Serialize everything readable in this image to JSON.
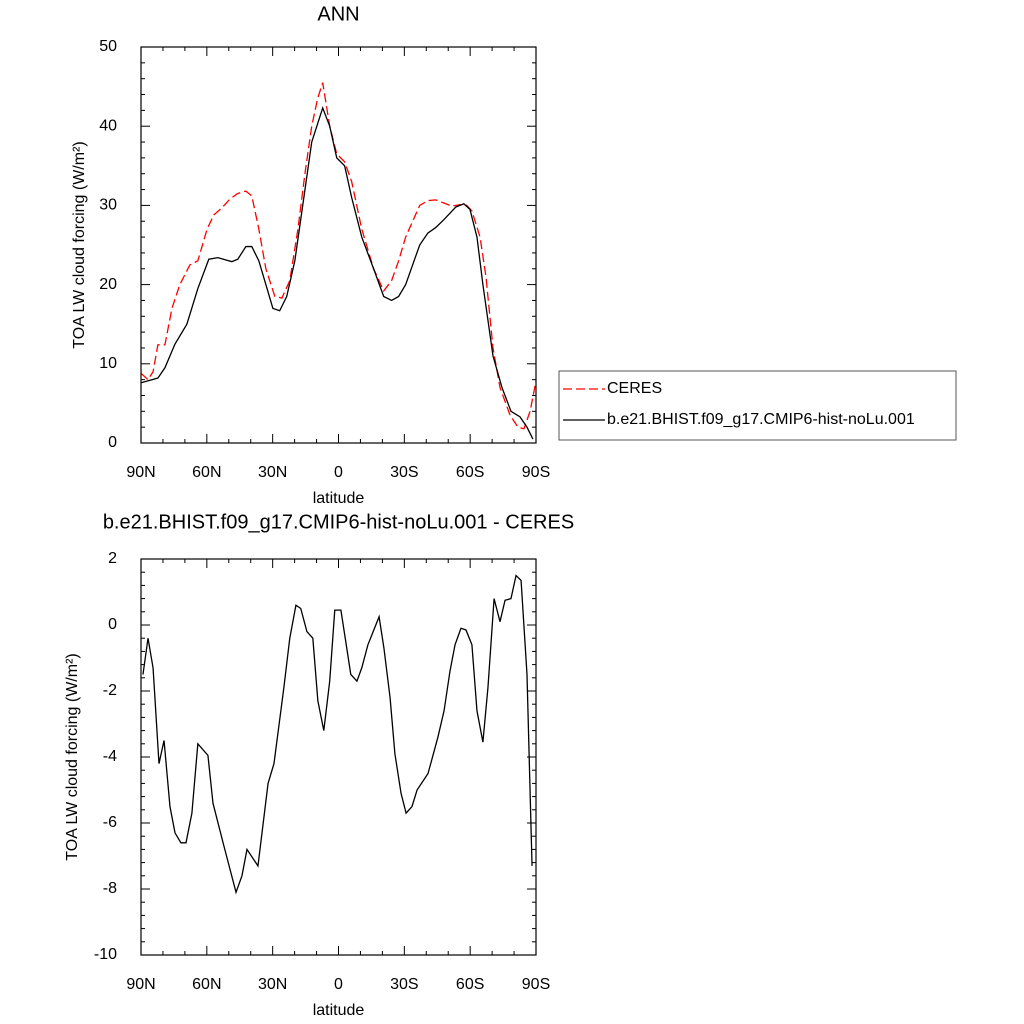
{
  "chart_data": [
    {
      "type": "line",
      "title": "ANN",
      "x_label": "latitude",
      "y_label": "TOA LW cloud forcing (W/m²)",
      "xlim": [
        90,
        -90
      ],
      "xticks": [
        {
          "value": 90,
          "label": "90N"
        },
        {
          "value": 60,
          "label": "60N"
        },
        {
          "value": 30,
          "label": "30N"
        },
        0,
        {
          "value": -30,
          "label": "30S"
        },
        {
          "value": -60,
          "label": "60S"
        },
        {
          "value": -90,
          "label": "90S"
        }
      ],
      "ylim": [
        0,
        50
      ],
      "yticks": [
        0,
        10,
        20,
        30,
        40,
        50
      ],
      "series": [
        {
          "name": "CERES",
          "color": "#ff0000",
          "dash": true,
          "x": [
            90,
            86.8,
            84.5,
            82.3,
            79.1,
            75.9,
            72.3,
            67.7,
            64.1,
            59.9,
            56.8,
            53.1,
            49.5,
            45.9,
            42.2,
            39.5,
            36.3,
            33.1,
            29,
            25.8,
            22.2,
            18.5,
            15.3,
            12.2,
            9.5,
            7.2,
            4,
            0.8,
            -2.8,
            -6,
            -10.6,
            -16,
            -20.6,
            -24.2,
            -27.4,
            -30.6,
            -33.8,
            -37,
            -40.7,
            -44.3,
            -48,
            -51.7,
            -55.4,
            -58.1,
            -60.8,
            -64.5,
            -67.2,
            -70.4,
            -73.6,
            -78.2,
            -81.8,
            -84.5,
            -87.3,
            -90
          ],
          "values": [
            8.8,
            8,
            9,
            12.4,
            12.4,
            17,
            20,
            22.5,
            23,
            27,
            28.8,
            29.7,
            30.8,
            31.5,
            31.8,
            31.2,
            27,
            22,
            18.5,
            18.3,
            20.5,
            27,
            34,
            40,
            43.5,
            45.5,
            40,
            36.5,
            35.5,
            33,
            27,
            22,
            19.2,
            20.5,
            23,
            26,
            28,
            30,
            30.6,
            30.7,
            30.3,
            29.9,
            30.1,
            30.1,
            29.3,
            26,
            21,
            12,
            7,
            3.5,
            2,
            1.8,
            4,
            7.8
          ]
        },
        {
          "name": "b.e21.BHIST.f09_g17.CMIP6-hist-noLu.001",
          "color": "#000000",
          "dash": false,
          "x": [
            90,
            82.3,
            79.1,
            74.5,
            69.1,
            64.1,
            59.1,
            55,
            48.6,
            45.9,
            42.2,
            39.5,
            36.3,
            33.1,
            29.9,
            26.8,
            23.6,
            19.9,
            16.3,
            12.2,
            7.2,
            4,
            0.8,
            -2.8,
            -6,
            -10.6,
            -16,
            -20.6,
            -24.2,
            -27.4,
            -30.6,
            -33.8,
            -37,
            -40.7,
            -44.3,
            -48,
            -53.5,
            -57.1,
            -59.9,
            -63.1,
            -65.8,
            -70.4,
            -74.5,
            -78.6,
            -82.7,
            -85.9,
            -88.6
          ],
          "values": [
            7.6,
            8.2,
            9.5,
            12.5,
            15,
            19.5,
            23.2,
            23.4,
            22.9,
            23.2,
            24.8,
            24.8,
            23,
            20,
            17,
            16.7,
            18.5,
            23,
            30,
            38,
            42.3,
            40,
            36,
            35,
            31,
            26,
            22,
            18.5,
            18,
            18.5,
            20,
            22.5,
            25,
            26.5,
            27.2,
            28.2,
            29.8,
            30.2,
            29.5,
            26,
            20,
            11,
            7,
            4,
            3.3,
            2,
            0.5
          ]
        }
      ]
    },
    {
      "type": "line",
      "title": "b.e21.BHIST.f09_g17.CMIP6-hist-noLu.001 - CERES",
      "x_label": "latitude",
      "y_label": "TOA LW cloud forcing (W/m²)",
      "xlim": [
        90,
        -90
      ],
      "xticks": [
        {
          "value": 90,
          "label": "90N"
        },
        {
          "value": 60,
          "label": "60N"
        },
        {
          "value": 30,
          "label": "30N"
        },
        0,
        {
          "value": -30,
          "label": "30S"
        },
        {
          "value": -60,
          "label": "60S"
        },
        {
          "value": -90,
          "label": "90S"
        }
      ],
      "ylim": [
        -10,
        2
      ],
      "yticks": [
        -10,
        -8,
        -6,
        -4,
        -2,
        0,
        2
      ],
      "series": [
        {
          "color": "#000000",
          "dash": false,
          "x": [
            89.1,
            86.8,
            84.5,
            81.8,
            79.5,
            76.8,
            74.5,
            71.8,
            69.5,
            66.8,
            64.1,
            59.5,
            57.2,
            52.2,
            46.7,
            44,
            41.7,
            36.7,
            32.1,
            29.4,
            24.9,
            22.2,
            19.4,
            17.2,
            14.4,
            11.7,
            9.4,
            6.7,
            4,
            1.7,
            -1.1,
            -3.3,
            -5.6,
            -8.4,
            -10.6,
            -13.4,
            -18.5,
            -20.7,
            -23.5,
            -25.7,
            -28.5,
            -30.8,
            -33.5,
            -35.8,
            -40.8,
            -45.3,
            -48.1,
            -50.8,
            -53.1,
            -55.8,
            -58.1,
            -60.8,
            -63.1,
            -65.8,
            -68.1,
            -70.9,
            -73.6,
            -75.9,
            -78.6,
            -80.9,
            -83.2,
            -85.9,
            -88.2
          ],
          "values": [
            -1.5,
            -0.4,
            -1.3,
            -4.2,
            -3.5,
            -5.5,
            -6.3,
            -6.6,
            -6.6,
            -5.7,
            -3.6,
            -3.95,
            -5.4,
            -6.7,
            -8.1,
            -7.6,
            -6.8,
            -7.3,
            -4.8,
            -4.2,
            -1.9,
            -0.4,
            0.6,
            0.5,
            -0.2,
            -0.4,
            -2.3,
            -3.2,
            -1.7,
            0.45,
            0.45,
            -0.5,
            -1.5,
            -1.7,
            -1.3,
            -0.6,
            0.25,
            -0.7,
            -2.2,
            -3.9,
            -5.1,
            -5.7,
            -5.5,
            -5.0,
            -4.5,
            -3.4,
            -2.6,
            -1.4,
            -0.6,
            -0.1,
            -0.15,
            -0.6,
            -2.6,
            -3.55,
            -1.9,
            0.8,
            0.1,
            0.75,
            0.8,
            1.5,
            1.35,
            -1.5,
            -7.3
          ]
        }
      ]
    }
  ]
}
